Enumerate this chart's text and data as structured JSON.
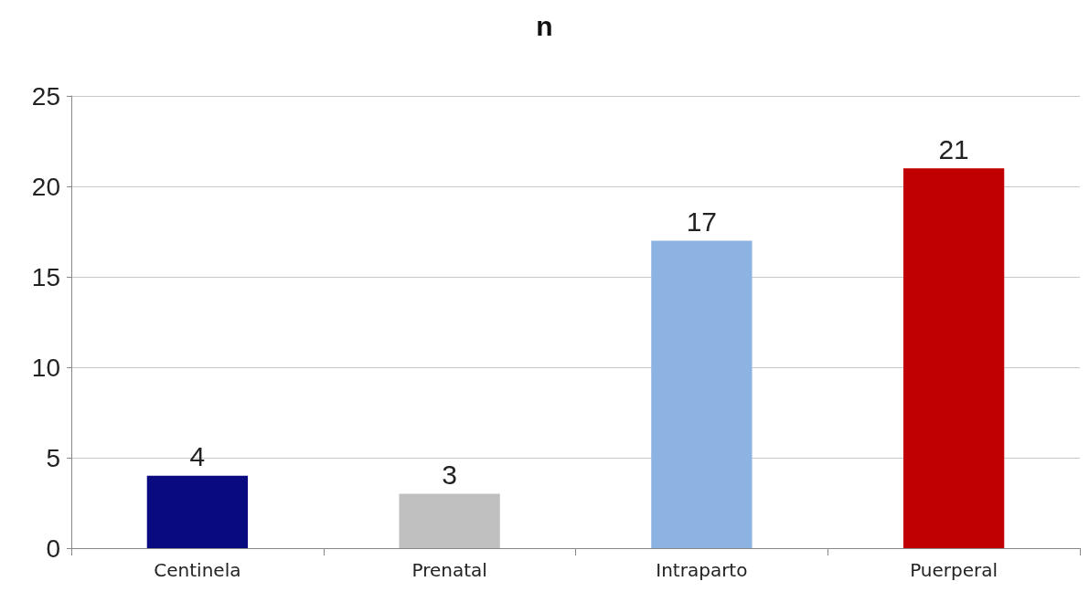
{
  "chart_data": {
    "type": "bar",
    "title": "n",
    "categories": [
      "Centinela",
      "Prenatal",
      "Intraparto",
      "Puerperal"
    ],
    "values": [
      4,
      3,
      17,
      21
    ],
    "colors": [
      "#0a0a80",
      "#c0c0c0",
      "#8db3e2",
      "#c00000"
    ],
    "ylim": [
      0,
      25
    ],
    "yticks": [
      0,
      5,
      10,
      15,
      20,
      25
    ],
    "grid": "y",
    "data_labels": true
  }
}
